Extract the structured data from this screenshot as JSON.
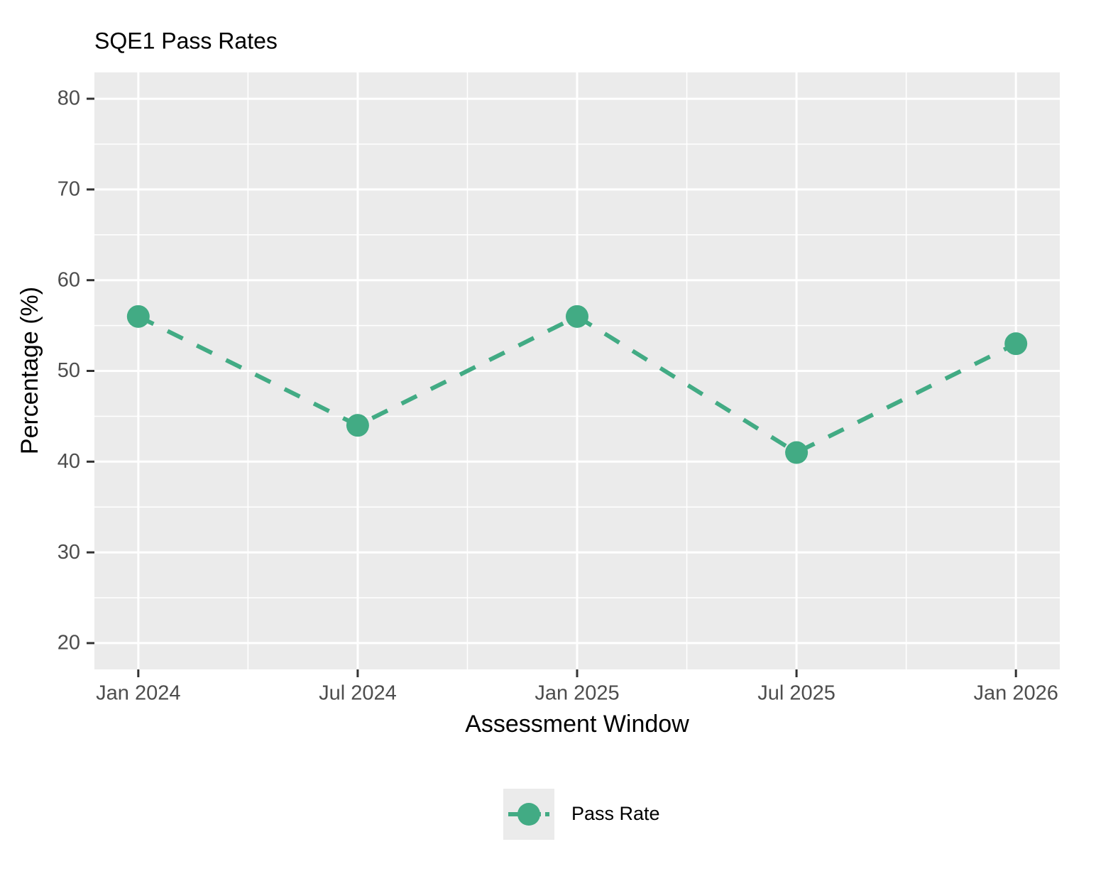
{
  "chart_data": {
    "type": "line",
    "title": "SQE1 Pass Rates",
    "x_label": "Assessment Window",
    "y_label": "Percentage (%)",
    "x": [
      "Jan 2024",
      "Jul 2024",
      "Jan 2025",
      "Jul 2025",
      "Jan 2026"
    ],
    "series": [
      {
        "name": "Pass Rate",
        "color": "#42ab84",
        "values": [
          56,
          44,
          56,
          41,
          53
        ]
      }
    ],
    "ylim": [
      17.1,
      82.9
    ],
    "yticks": [
      20,
      30,
      40,
      50,
      60,
      70,
      80
    ],
    "grid": true,
    "legend_position": "bottom",
    "line_style": "dashed"
  }
}
